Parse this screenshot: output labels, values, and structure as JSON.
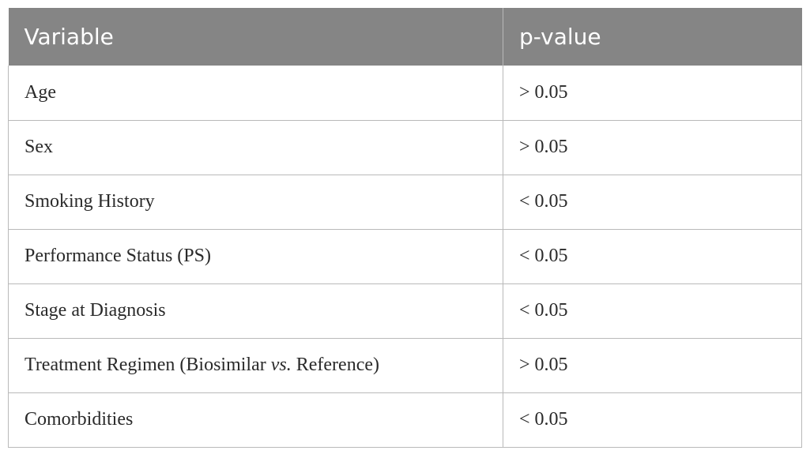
{
  "table": {
    "headers": [
      "Variable",
      "p-value"
    ],
    "rows": [
      {
        "variable": "Age",
        "p_value": "> 0.05"
      },
      {
        "variable": "Sex",
        "p_value": "> 0.05"
      },
      {
        "variable": "Smoking History",
        "p_value": "< 0.05"
      },
      {
        "variable": "Performance Status (PS)",
        "p_value": "< 0.05"
      },
      {
        "variable": "Stage at Diagnosis",
        "p_value": "< 0.05"
      },
      {
        "variable_parts": [
          "Treatment Regimen (Biosimilar ",
          "vs.",
          " Reference)"
        ],
        "p_value": "> 0.05"
      },
      {
        "variable": "Comorbidities",
        "p_value": "< 0.05"
      }
    ]
  }
}
